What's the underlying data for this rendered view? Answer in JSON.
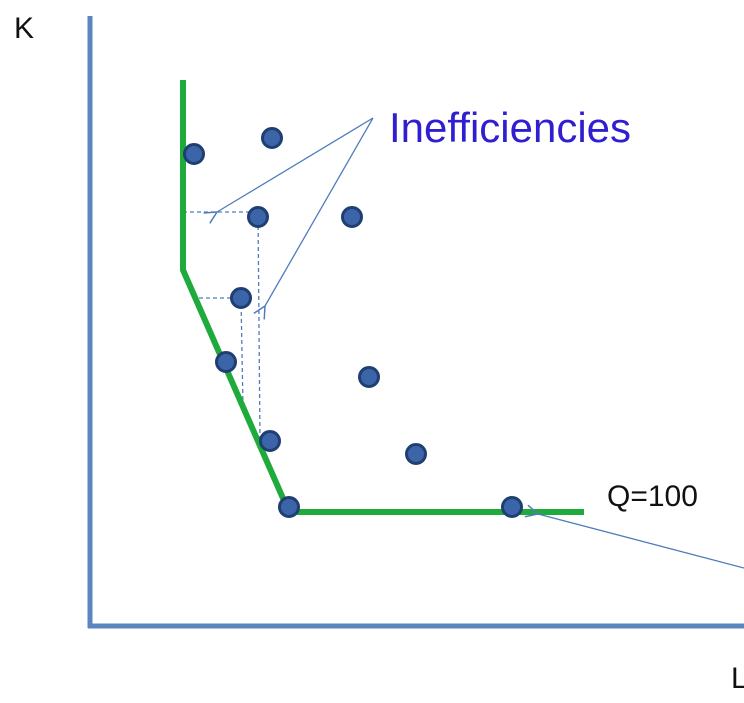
{
  "axes": {
    "y_label": "K",
    "x_label": "L"
  },
  "isoquant_label": "Q=100",
  "annotation": {
    "text": "Inefficiencies",
    "color": "#2f1fd0"
  },
  "colors": {
    "axis": "#5b85c0",
    "isoquant": "#1faa3c",
    "point_fill": "#3b65a8",
    "point_stroke": "#1f3f73",
    "arrow": "#4f7dbb",
    "dashed": "#4f7dbb"
  }
}
